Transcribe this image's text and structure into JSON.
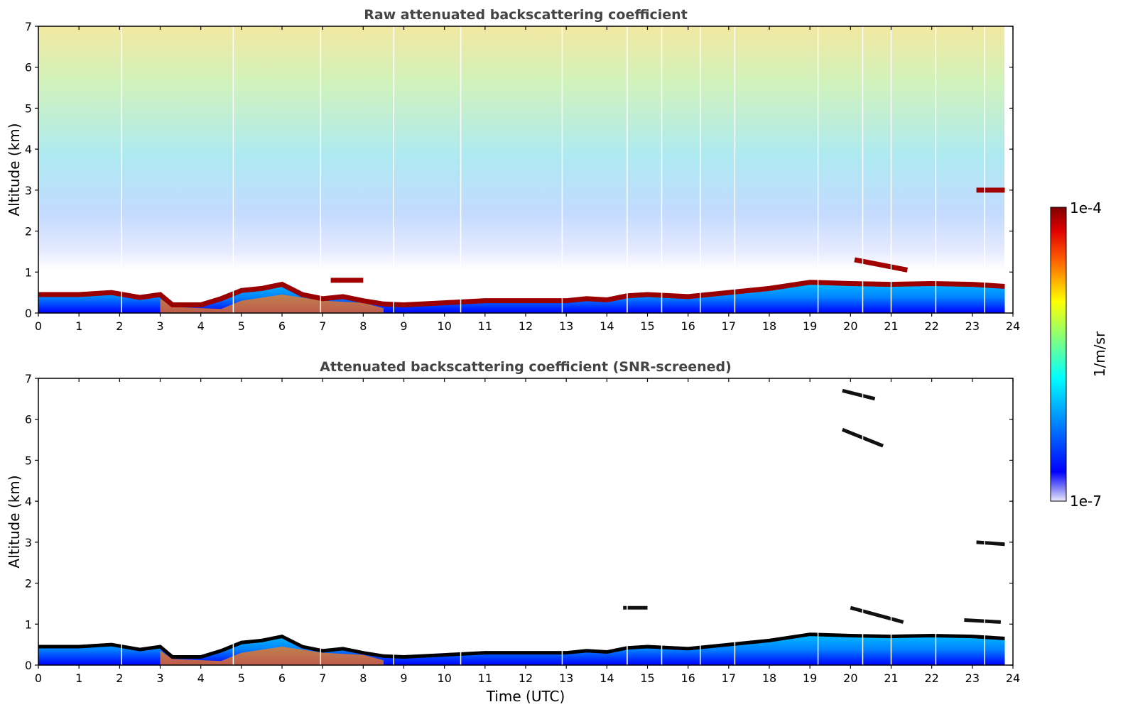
{
  "chart_data": [
    {
      "type": "heatmap",
      "title": "Raw attenuated backscattering coefficient",
      "xlabel": "",
      "ylabel": "Altitude (km)",
      "xlim": [
        0,
        24
      ],
      "ylim": [
        0,
        7
      ],
      "xticks": [
        "0",
        "1",
        "2",
        "3",
        "4",
        "5",
        "6",
        "7",
        "8",
        "9",
        "10",
        "11",
        "12",
        "13",
        "14",
        "15",
        "16",
        "17",
        "18",
        "19",
        "20",
        "21",
        "22",
        "23",
        "24"
      ],
      "yticks": [
        "0",
        "1",
        "2",
        "3",
        "4",
        "5",
        "6",
        "7"
      ],
      "time_end": 23.8,
      "boundary_layer_top_km": [
        [
          0,
          0.45
        ],
        [
          1,
          0.45
        ],
        [
          1.8,
          0.5
        ],
        [
          2.5,
          0.38
        ],
        [
          3.0,
          0.45
        ],
        [
          3.3,
          0.2
        ],
        [
          4.0,
          0.2
        ],
        [
          4.5,
          0.35
        ],
        [
          5.0,
          0.55
        ],
        [
          5.5,
          0.6
        ],
        [
          6.0,
          0.7
        ],
        [
          6.5,
          0.45
        ],
        [
          7.0,
          0.35
        ],
        [
          7.5,
          0.4
        ],
        [
          8.0,
          0.3
        ],
        [
          8.5,
          0.22
        ],
        [
          9.0,
          0.2
        ],
        [
          10.0,
          0.25
        ],
        [
          11.0,
          0.3
        ],
        [
          12.0,
          0.3
        ],
        [
          13.0,
          0.3
        ],
        [
          13.5,
          0.35
        ],
        [
          14.0,
          0.32
        ],
        [
          14.5,
          0.42
        ],
        [
          15.0,
          0.45
        ],
        [
          16.0,
          0.4
        ],
        [
          17.0,
          0.5
        ],
        [
          18.0,
          0.6
        ],
        [
          19.0,
          0.75
        ],
        [
          20.0,
          0.72
        ],
        [
          21.0,
          0.7
        ],
        [
          22.0,
          0.72
        ],
        [
          23.0,
          0.7
        ],
        [
          23.8,
          0.65
        ]
      ],
      "cloud_layers": [
        {
          "start": 20.1,
          "end": 21.4,
          "alt_start_km": 1.3,
          "alt_end_km": 1.05
        },
        {
          "start": 23.1,
          "end": 23.8,
          "alt_start_km": 3.0,
          "alt_end_km": 3.0
        },
        {
          "start": 7.2,
          "end": 8.0,
          "alt_start_km": 0.8,
          "alt_end_km": 0.8
        }
      ]
    },
    {
      "type": "heatmap",
      "title": "Attenuated backscattering coefficient (SNR-screened)",
      "xlabel": "Time (UTC)",
      "ylabel": "Altitude (km)",
      "xlim": [
        0,
        24
      ],
      "ylim": [
        0,
        7
      ],
      "xticks": [
        "0",
        "1",
        "2",
        "3",
        "4",
        "5",
        "6",
        "7",
        "8",
        "9",
        "10",
        "11",
        "12",
        "13",
        "14",
        "15",
        "16",
        "17",
        "18",
        "19",
        "20",
        "21",
        "22",
        "23",
        "24"
      ],
      "yticks": [
        "0",
        "1",
        "2",
        "3",
        "4",
        "5",
        "6",
        "7"
      ],
      "time_end": 23.8,
      "screened_features": [
        {
          "start": 19.8,
          "end": 20.6,
          "alt_start_km": 6.7,
          "alt_end_km": 6.5
        },
        {
          "start": 19.8,
          "end": 20.8,
          "alt_start_km": 5.75,
          "alt_end_km": 5.35
        },
        {
          "start": 23.1,
          "end": 23.8,
          "alt_start_km": 3.0,
          "alt_end_km": 2.95
        },
        {
          "start": 20.0,
          "end": 21.3,
          "alt_start_km": 1.4,
          "alt_end_km": 1.05
        },
        {
          "start": 22.8,
          "end": 23.7,
          "alt_start_km": 1.1,
          "alt_end_km": 1.05
        },
        {
          "start": 14.4,
          "end": 15.0,
          "alt_start_km": 1.4,
          "alt_end_km": 1.4
        }
      ]
    }
  ],
  "colorbar": {
    "max_label": "1e-4",
    "min_label": "1e-7",
    "unit_label": "1/m/sr"
  },
  "colors": {
    "text": "#333333",
    "axis": "#000000",
    "background": "#ffffff"
  }
}
